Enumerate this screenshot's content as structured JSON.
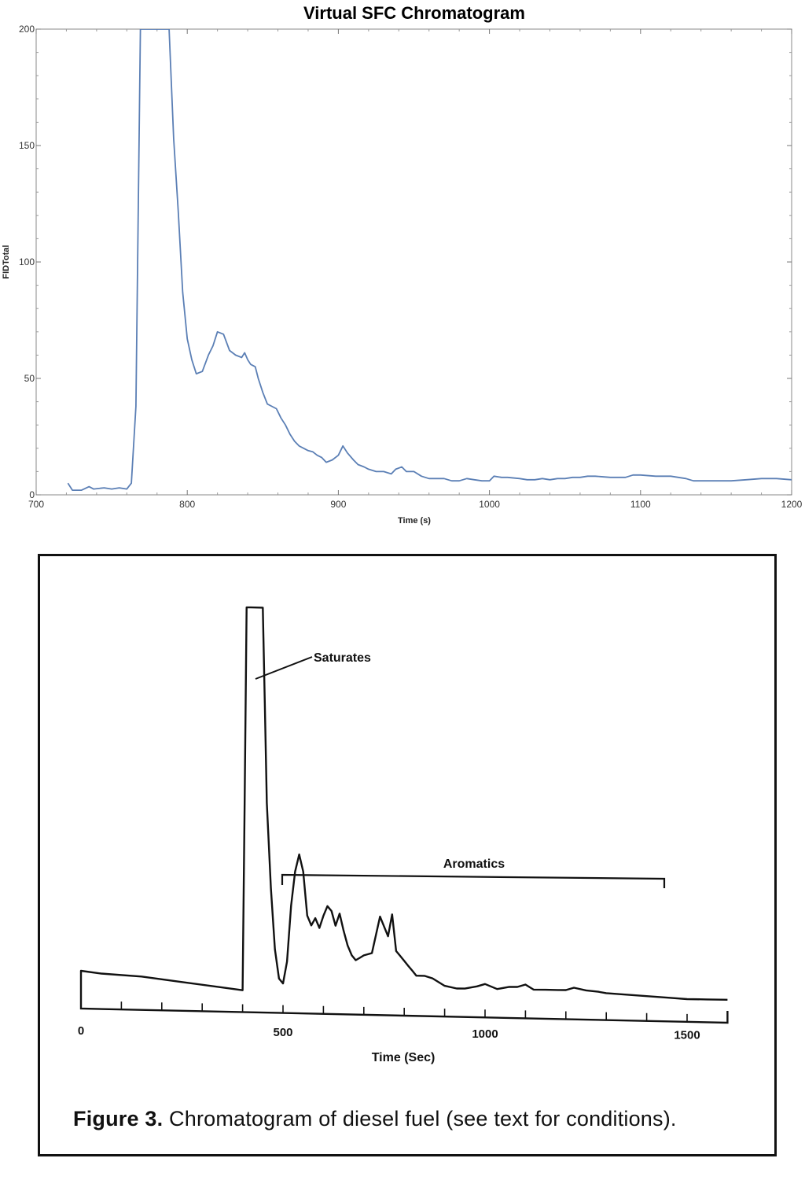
{
  "chart_data": [
    {
      "type": "line",
      "title": "Virtual SFC Chromatogram",
      "xlabel": "Time (s)",
      "ylabel": "FIDTotal",
      "xlim": [
        700,
        1200
      ],
      "ylim": [
        0,
        200
      ],
      "x_ticks": [
        700,
        800,
        900,
        1000,
        1100,
        1200
      ],
      "y_ticks": [
        0,
        50,
        100,
        150,
        200
      ],
      "grid": false,
      "series": [
        {
          "color": "#5b7fb5",
          "x": [
            721,
            724,
            730,
            735,
            738,
            745,
            750,
            755,
            760,
            763,
            766,
            769,
            771,
            774,
            777,
            780,
            783,
            786,
            788,
            791,
            794,
            797,
            800,
            803,
            806,
            810,
            814,
            817,
            820,
            824,
            828,
            832,
            836,
            838,
            840,
            842,
            845,
            847,
            850,
            853,
            856,
            859,
            862,
            865,
            868,
            871,
            874,
            877,
            880,
            883,
            886,
            889,
            892,
            896,
            900,
            903,
            906,
            910,
            913,
            917,
            920,
            925,
            930,
            935,
            938,
            942,
            945,
            950,
            955,
            960,
            965,
            970,
            975,
            980,
            985,
            990,
            995,
            1000,
            1003,
            1008,
            1012,
            1020,
            1025,
            1030,
            1035,
            1040,
            1045,
            1050,
            1055,
            1060,
            1065,
            1070,
            1080,
            1090,
            1095,
            1100,
            1110,
            1120,
            1125,
            1130,
            1135,
            1140,
            1150,
            1160,
            1170,
            1180,
            1185,
            1190,
            1200
          ],
          "y": [
            5,
            2,
            2,
            3.5,
            2.5,
            3,
            2.5,
            3,
            2.5,
            5,
            38,
            200,
            200,
            200,
            200,
            200,
            200,
            200,
            200,
            153,
            122,
            87,
            67,
            58,
            52,
            53,
            60,
            64,
            70,
            69,
            62,
            60,
            59,
            61,
            58,
            56,
            55,
            50,
            44,
            39,
            38,
            37,
            33,
            30,
            26,
            23,
            21,
            20,
            19,
            18.5,
            17,
            16,
            14,
            15,
            17,
            21,
            18,
            15,
            13,
            12,
            11,
            10,
            10,
            9,
            11,
            12,
            10,
            10,
            8,
            7,
            7,
            7,
            6,
            6,
            7,
            6.5,
            6,
            6,
            8,
            7.5,
            7.5,
            7,
            6.5,
            6.5,
            7,
            6.5,
            7,
            7,
            7.5,
            7.5,
            8,
            8,
            7.5,
            7.5,
            8.5,
            8.5,
            8,
            8,
            7.5,
            7,
            6,
            6,
            6,
            6,
            6.5,
            7,
            7,
            7,
            6.5
          ]
        }
      ]
    },
    {
      "type": "line",
      "xlabel": "Time (Sec)",
      "ylabel": "",
      "xlim": [
        0,
        1600
      ],
      "x_ticks": [
        0,
        500,
        1000,
        1500
      ],
      "annotations": [
        "Saturates",
        "Aromatics"
      ],
      "caption_bold": "Figure 3.",
      "caption_text": "Chromatogram of diesel fuel (see text for conditions).",
      "series": [
        {
          "color": "#111111",
          "x": [
            0,
            50,
            150,
            250,
            350,
            400,
            405,
            410,
            420,
            450,
            455,
            460,
            470,
            480,
            490,
            500,
            510,
            520,
            530,
            540,
            550,
            560,
            570,
            580,
            590,
            600,
            610,
            620,
            630,
            640,
            650,
            660,
            670,
            680,
            690,
            700,
            720,
            740,
            750,
            760,
            770,
            780,
            790,
            800,
            810,
            820,
            830,
            850,
            870,
            900,
            930,
            950,
            980,
            1000,
            1030,
            1060,
            1080,
            1100,
            1120,
            1150,
            1180,
            1200,
            1220,
            1250,
            1280,
            1300,
            1350,
            1400,
            1450,
            1500,
            1550,
            1600
          ],
          "y": [
            1.0,
            0.9,
            0.8,
            0.6,
            0.4,
            0.3,
            8.0,
            16.0,
            16.0,
            16.0,
            12.0,
            8.0,
            4.5,
            2.0,
            0.8,
            0.6,
            1.5,
            3.8,
            5.2,
            5.9,
            5.2,
            3.4,
            3.0,
            3.3,
            2.9,
            3.4,
            3.8,
            3.6,
            3.0,
            3.5,
            2.8,
            2.2,
            1.8,
            1.6,
            1.7,
            1.8,
            1.9,
            3.4,
            3.0,
            2.6,
            3.5,
            2.0,
            1.8,
            1.6,
            1.4,
            1.2,
            1.0,
            1.0,
            0.9,
            0.6,
            0.5,
            0.5,
            0.6,
            0.7,
            0.5,
            0.6,
            0.6,
            0.7,
            0.5,
            0.5,
            0.5,
            0.5,
            0.6,
            0.5,
            0.45,
            0.4,
            0.35,
            0.3,
            0.25,
            0.2,
            0.2,
            0.2
          ]
        }
      ]
    }
  ]
}
